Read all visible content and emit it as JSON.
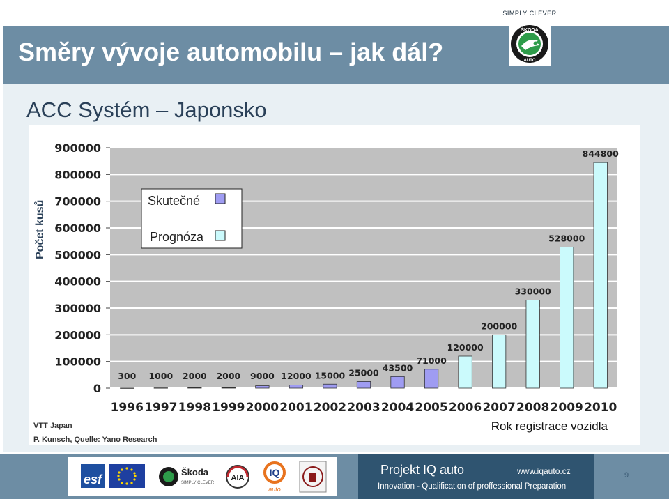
{
  "slogan": "SIMPLY CLEVER",
  "title": "Směry vývoje automobilu – jak dál?",
  "subtitle": "ACC Systém – Japonsko",
  "brand": {
    "logo_top_text": "ŠKODA",
    "logo_bottom_text": "AUTO",
    "skoda_small_name": "Škoda",
    "skoda_small_sub": "SIMPLY CLEVER",
    "esf_text": "esf",
    "aia_text": "AIA",
    "iq_text": "IQ",
    "iq_sub": "auto"
  },
  "colors": {
    "header": "#6d8da4",
    "footer_dark": "#2f5470",
    "actual": "#9f9cf2",
    "forecast": "#cbfafc",
    "plot_bg": "#c0c0c0"
  },
  "chart_data": {
    "type": "bar",
    "ylabel": "Počet kusů",
    "xlabel": "Rok registrace vozidla",
    "ylim": [
      0,
      900000
    ],
    "yticks": [
      "0",
      "100000",
      "200000",
      "300000",
      "400000",
      "500000",
      "600000",
      "700000",
      "800000",
      "900000"
    ],
    "categories": [
      "1996",
      "1997",
      "1998",
      "1999",
      "2000",
      "2001",
      "2002",
      "2003",
      "2004",
      "2005",
      "2006",
      "2007",
      "2008",
      "2009",
      "2010"
    ],
    "values": [
      300,
      1000,
      2000,
      2000,
      9000,
      12000,
      15000,
      25000,
      43500,
      71000,
      120000,
      200000,
      330000,
      528000,
      844800
    ],
    "value_labels": [
      "300",
      "1000",
      "2000",
      "2000",
      "9000",
      "12000",
      "15000",
      "25000",
      "43500",
      "71000",
      "120000",
      "200000",
      "330000",
      "528000",
      "844800"
    ],
    "series_kind": [
      "actual",
      "actual",
      "actual",
      "actual",
      "actual",
      "actual",
      "actual",
      "actual",
      "actual",
      "actual",
      "forecast",
      "forecast",
      "forecast",
      "forecast",
      "forecast"
    ],
    "legend": {
      "position": "top-left",
      "entries": [
        {
          "name": "Skutečné",
          "kind": "actual"
        },
        {
          "name": "Prognóza",
          "kind": "forecast"
        }
      ]
    },
    "grid": true,
    "source": [
      "VTT Japan",
      "P. Kunsch, Quelle: Yano Research"
    ]
  },
  "footer": {
    "projekt": "Projekt  IQ auto",
    "www": "www.iqauto.cz",
    "tagline": "Innovation - Qualification of proffessional Preparation",
    "page": "9"
  }
}
